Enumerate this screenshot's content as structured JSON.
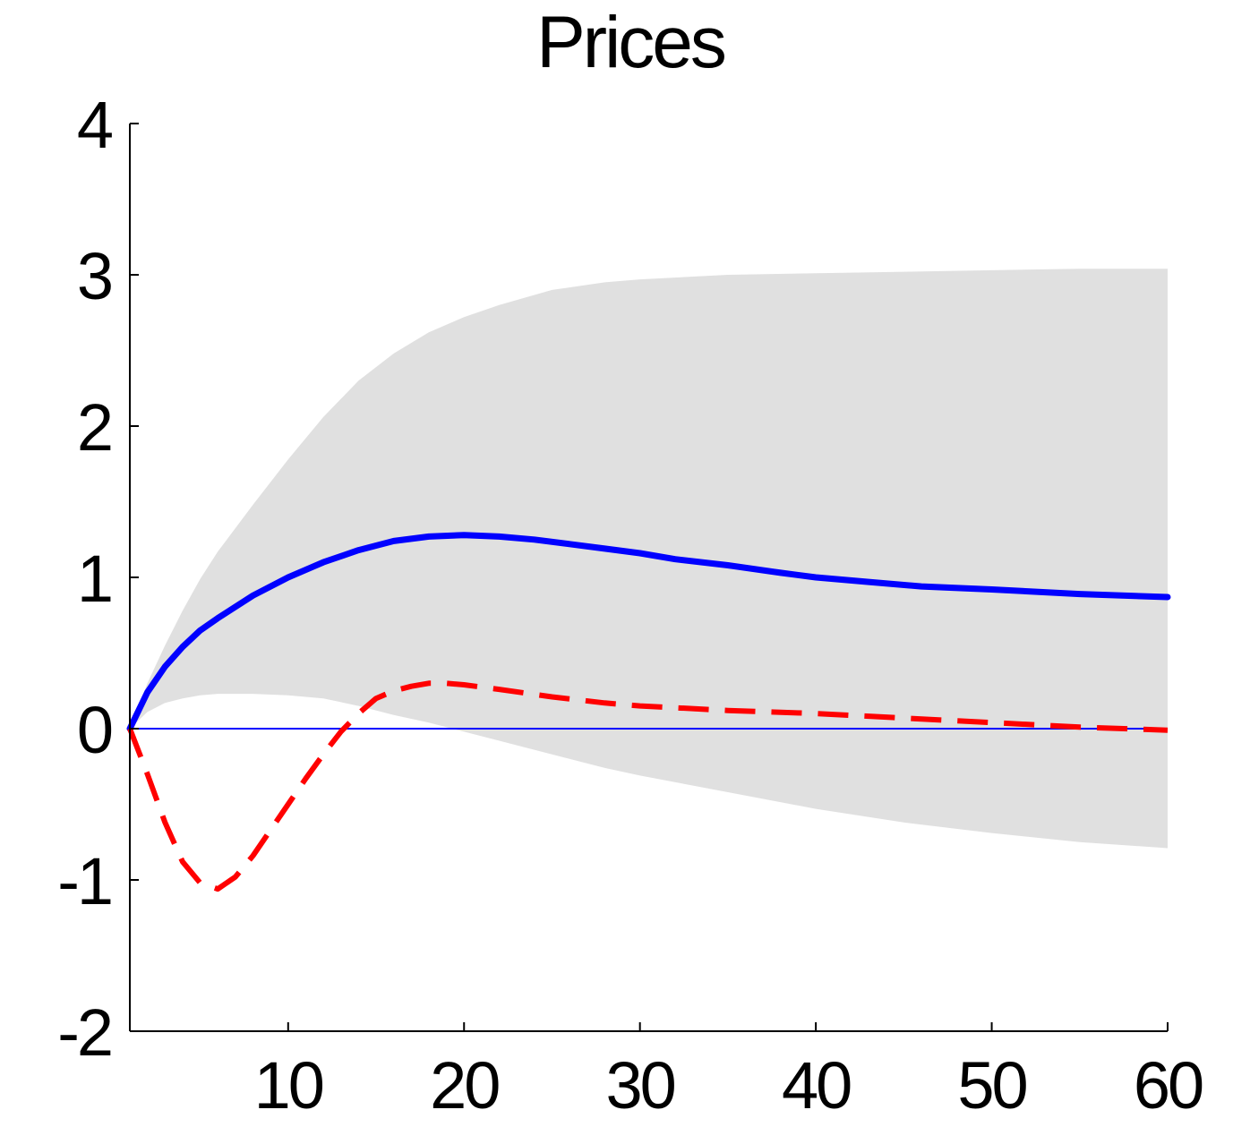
{
  "chart_data": {
    "type": "line",
    "title": "Prices",
    "xlabel": "",
    "ylabel": "",
    "xlim": [
      1,
      60
    ],
    "ylim": [
      -2,
      4
    ],
    "xticks": [
      10,
      20,
      30,
      40,
      50,
      60
    ],
    "yticks": [
      -2,
      -1,
      0,
      1,
      2,
      3,
      4
    ],
    "grid": false,
    "band": {
      "x": [
        1,
        2,
        3,
        4,
        5,
        6,
        8,
        10,
        12,
        14,
        16,
        18,
        20,
        22,
        25,
        28,
        30,
        35,
        40,
        45,
        50,
        55,
        60
      ],
      "upper": [
        0.0,
        0.3,
        0.55,
        0.78,
        0.99,
        1.17,
        1.48,
        1.78,
        2.06,
        2.3,
        2.48,
        2.62,
        2.72,
        2.8,
        2.9,
        2.95,
        2.97,
        3.0,
        3.01,
        3.02,
        3.03,
        3.04,
        3.04
      ],
      "lower": [
        0.0,
        0.11,
        0.17,
        0.2,
        0.22,
        0.23,
        0.23,
        0.22,
        0.2,
        0.15,
        0.09,
        0.04,
        -0.02,
        -0.08,
        -0.17,
        -0.26,
        -0.31,
        -0.42,
        -0.53,
        -0.62,
        -0.69,
        -0.75,
        -0.79
      ],
      "color": "#e0e0e0"
    },
    "series": [
      {
        "style": "solid",
        "color": "#0000ff",
        "x": [
          1,
          2,
          3,
          4,
          5,
          6,
          8,
          10,
          12,
          14,
          16,
          18,
          20,
          22,
          24,
          26,
          28,
          30,
          32,
          35,
          38,
          40,
          43,
          46,
          50,
          55,
          60
        ],
        "values": [
          0.0,
          0.24,
          0.41,
          0.54,
          0.65,
          0.73,
          0.88,
          1.0,
          1.1,
          1.18,
          1.24,
          1.27,
          1.28,
          1.27,
          1.25,
          1.22,
          1.19,
          1.16,
          1.12,
          1.08,
          1.03,
          1.0,
          0.97,
          0.94,
          0.92,
          0.89,
          0.87
        ]
      },
      {
        "style": "dashed",
        "color": "#ff0000",
        "x": [
          1,
          2,
          3,
          4,
          5,
          6,
          7,
          8,
          9,
          10,
          11,
          12,
          13,
          14,
          15,
          16,
          17,
          18,
          19,
          20,
          22,
          25,
          28,
          30,
          35,
          40,
          45,
          50,
          55,
          60
        ],
        "values": [
          0.0,
          -0.3,
          -0.62,
          -0.88,
          -1.02,
          -1.06,
          -0.98,
          -0.84,
          -0.67,
          -0.5,
          -0.33,
          -0.17,
          -0.02,
          0.1,
          0.2,
          0.25,
          0.28,
          0.3,
          0.3,
          0.29,
          0.26,
          0.21,
          0.17,
          0.15,
          0.12,
          0.1,
          0.07,
          0.04,
          0.01,
          -0.01
        ]
      }
    ],
    "zero_line": {
      "y": 0,
      "color": "#0000ff"
    },
    "axis_color": "#000000"
  }
}
